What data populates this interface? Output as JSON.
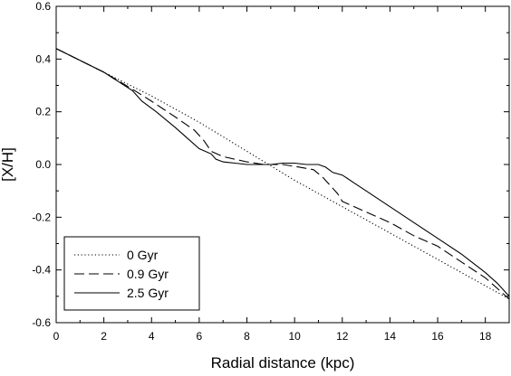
{
  "chart_data": {
    "type": "line",
    "xlabel": "Radial distance (kpc)",
    "ylabel": "[X/H]",
    "xlim": [
      0,
      19
    ],
    "ylim": [
      -0.6,
      0.6
    ],
    "x_ticks": [
      0,
      2,
      4,
      6,
      8,
      10,
      12,
      14,
      16,
      18
    ],
    "y_ticks": [
      0.6,
      0.4,
      0.2,
      0.0,
      -0.2,
      -0.4,
      -0.6
    ],
    "y_tick_labels": [
      "0.6",
      "0.4",
      "0.2",
      "0.0",
      "-0.2",
      "-0.4",
      "-0.6"
    ],
    "grid": false,
    "legend_position": "bottom-left",
    "series": [
      {
        "name": "0 Gyr",
        "style": "dotted",
        "color": "#000000",
        "x": [
          0,
          2,
          4,
          6,
          8,
          10,
          12,
          14,
          16,
          18,
          19
        ],
        "y": [
          0.44,
          0.35,
          0.26,
          0.16,
          0.05,
          -0.06,
          -0.16,
          -0.26,
          -0.36,
          -0.46,
          -0.51
        ]
      },
      {
        "name": "0.9 Gyr",
        "style": "dashed",
        "color": "#000000",
        "x": [
          0,
          2,
          3.3,
          4,
          5,
          5.8,
          6.2,
          6.5,
          7,
          8,
          8.7,
          9.5,
          10.2,
          10.8,
          11.2,
          11.5,
          11.8,
          12,
          13,
          14,
          15,
          16,
          17,
          18,
          19
        ],
        "y": [
          0.44,
          0.35,
          0.28,
          0.24,
          0.18,
          0.13,
          0.09,
          0.05,
          0.03,
          0.01,
          0.0,
          0.0,
          -0.01,
          -0.02,
          -0.05,
          -0.08,
          -0.11,
          -0.14,
          -0.18,
          -0.22,
          -0.27,
          -0.31,
          -0.37,
          -0.43,
          -0.51
        ]
      },
      {
        "name": "2.5 Gyr",
        "style": "solid",
        "color": "#000000",
        "x": [
          0,
          2,
          3.2,
          3.6,
          4.2,
          5,
          5.5,
          6,
          6.5,
          6.7,
          7,
          7.5,
          8,
          8.5,
          9,
          9.5,
          10,
          10.5,
          11,
          11.3,
          11.6,
          12,
          12.5,
          13,
          14,
          15,
          16,
          17,
          18,
          18.5,
          19
        ],
        "y": [
          0.44,
          0.35,
          0.28,
          0.24,
          0.2,
          0.14,
          0.1,
          0.06,
          0.04,
          0.02,
          0.01,
          0.005,
          0.0,
          0.0,
          0.0,
          0.005,
          0.005,
          0.0,
          0.0,
          -0.01,
          -0.03,
          -0.04,
          -0.07,
          -0.1,
          -0.16,
          -0.22,
          -0.28,
          -0.34,
          -0.41,
          -0.45,
          -0.5
        ]
      }
    ]
  }
}
